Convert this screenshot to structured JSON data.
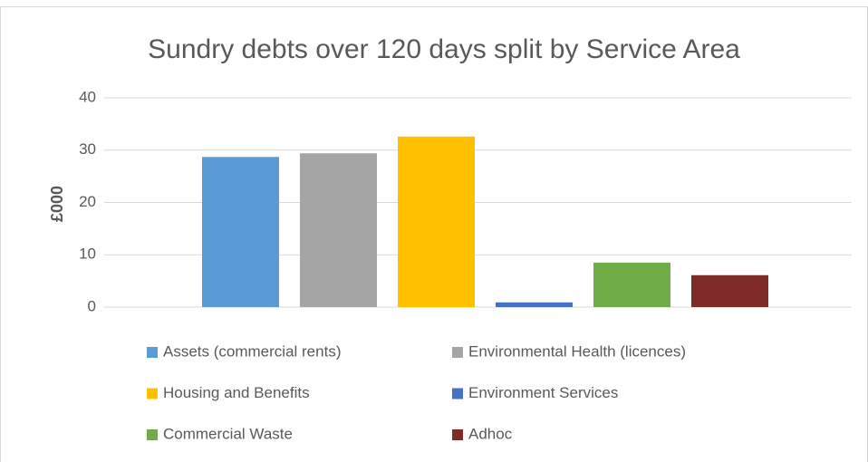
{
  "chart_data": {
    "type": "bar",
    "title": "Sundry debts over 120 days split by Service Area",
    "y_label": "£000",
    "categories": [
      null
    ],
    "series": [
      {
        "name": "Assets (commercial rents)",
        "color": "#5b9bd5",
        "values": [
          28.7
        ]
      },
      {
        "name": "Environmental Health (licences)",
        "color": "#a5a5a5",
        "values": [
          29.4
        ]
      },
      {
        "name": "Housing and Benefits",
        "color": "#ffc000",
        "values": [
          32.6
        ]
      },
      {
        "name": "Environment Services",
        "color": "#4472c4",
        "values": [
          0.9
        ]
      },
      {
        "name": "Commercial Waste",
        "color": "#70ad47",
        "values": [
          8.5
        ]
      },
      {
        "name": "Adhoc",
        "color": "#7f2b2a",
        "values": [
          6.1
        ]
      }
    ],
    "ylim": [
      0,
      40
    ],
    "yticks": [
      0,
      10,
      20,
      30,
      40
    ],
    "grid": true,
    "legend": "bottom"
  }
}
